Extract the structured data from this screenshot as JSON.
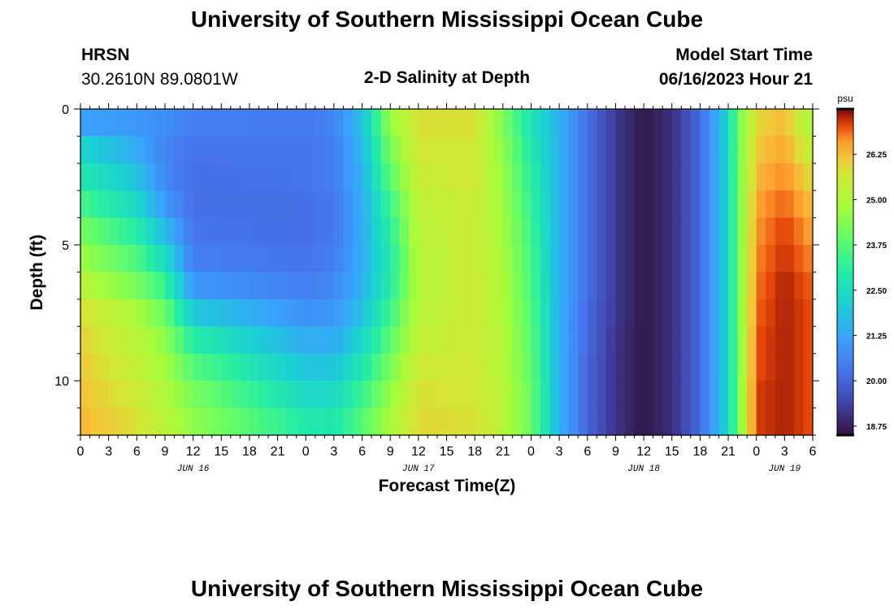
{
  "header": {
    "title": "University of Southern Mississippi Ocean Cube",
    "station": "HRSN",
    "coords": "30.2610N  89.0801W",
    "subtitle": "2-D Salinity at Depth",
    "model_label": "Model Start Time",
    "model_time": "06/16/2023 Hour 21"
  },
  "footer": {
    "title": "University of Southern Mississippi Ocean Cube"
  },
  "chart_data": {
    "type": "heatmap",
    "title": "2-D Salinity at Depth",
    "xlabel": "Forecast Time(Z)",
    "ylabel": "Depth (ft)",
    "x_hours_range": [
      0,
      78
    ],
    "y_range_ft": [
      0,
      12
    ],
    "y_ticks": [
      0,
      5,
      10
    ],
    "x_tick_hours": [
      0,
      3,
      6,
      9,
      12,
      15,
      18,
      21,
      24,
      27,
      30,
      33,
      36,
      39,
      42,
      45,
      48,
      51,
      54,
      57,
      60,
      63,
      66,
      69,
      72,
      75,
      78
    ],
    "x_tick_labels": [
      "0",
      "3",
      "6",
      "9",
      "12",
      "15",
      "18",
      "21",
      "0",
      "3",
      "6",
      "9",
      "12",
      "15",
      "18",
      "21",
      "0",
      "3",
      "6",
      "9",
      "12",
      "15",
      "18",
      "21",
      "0",
      "3",
      "6"
    ],
    "date_labels": [
      {
        "label": "JUN 16",
        "hour": 12
      },
      {
        "label": "JUN 17",
        "hour": 36
      },
      {
        "label": "JUN 18",
        "hour": 60
      },
      {
        "label": "JUN 19",
        "hour": 75
      }
    ],
    "colorbar": {
      "unit": "psu",
      "min": 18.5,
      "max": 27.5,
      "ticks": [
        18.75,
        20.0,
        21.25,
        22.5,
        23.75,
        25.0,
        26.25
      ],
      "tick_labels": [
        "18.75",
        "20.00",
        "21.25",
        "22.50",
        "23.75",
        "25.00",
        "26.25"
      ]
    },
    "depth_levels_ft": [
      0.5,
      1.5,
      2.5,
      3.5,
      4.5,
      5.5,
      6.5,
      7.5,
      8.5,
      9.5,
      10.5,
      11.5
    ],
    "profile_keyframes": [
      {
        "hour": 0,
        "values": [
          21.2,
          22.3,
          22.9,
          23.5,
          24.2,
          24.7,
          25.2,
          25.8,
          26.0,
          26.1,
          26.2,
          26.3
        ]
      },
      {
        "hour": 6,
        "values": [
          21.0,
          21.4,
          21.9,
          22.4,
          23.0,
          23.6,
          24.2,
          24.9,
          25.2,
          25.4,
          25.6,
          25.8
        ]
      },
      {
        "hour": 9,
        "values": [
          20.8,
          20.6,
          20.7,
          21.0,
          21.7,
          22.5,
          23.3,
          24.0,
          24.5,
          24.8,
          25.0,
          25.2
        ]
      },
      {
        "hour": 12,
        "values": [
          20.5,
          20.3,
          20.2,
          20.2,
          20.3,
          20.5,
          21.0,
          22.0,
          23.0,
          23.7,
          24.2,
          24.5
        ]
      },
      {
        "hour": 24,
        "values": [
          20.4,
          20.3,
          20.3,
          20.2,
          20.2,
          20.3,
          20.5,
          20.9,
          21.4,
          21.9,
          22.4,
          22.9
        ]
      },
      {
        "hour": 27,
        "values": [
          20.6,
          20.5,
          20.5,
          20.4,
          20.4,
          20.5,
          20.7,
          21.0,
          21.4,
          21.9,
          22.4,
          22.8
        ]
      },
      {
        "hour": 30,
        "values": [
          21.8,
          21.6,
          21.5,
          21.4,
          21.4,
          21.4,
          21.5,
          21.8,
          22.3,
          22.8,
          23.3,
          23.7
        ]
      },
      {
        "hour": 33,
        "values": [
          24.6,
          24.2,
          23.8,
          23.4,
          23.1,
          22.9,
          23.0,
          23.4,
          23.8,
          24.2,
          24.6,
          24.9
        ]
      },
      {
        "hour": 36,
        "values": [
          25.8,
          25.7,
          25.5,
          25.3,
          25.2,
          25.1,
          25.1,
          25.2,
          25.4,
          25.6,
          25.8,
          25.9
        ]
      },
      {
        "hour": 42,
        "values": [
          25.8,
          25.7,
          25.7,
          25.6,
          25.6,
          25.6,
          25.6,
          25.6,
          25.6,
          25.7,
          25.7,
          25.8
        ]
      },
      {
        "hour": 45,
        "values": [
          24.3,
          24.5,
          24.6,
          24.7,
          24.8,
          24.9,
          25.0,
          25.0,
          25.1,
          25.1,
          25.2,
          25.2
        ]
      },
      {
        "hour": 48,
        "values": [
          22.7,
          22.9,
          23.1,
          23.3,
          23.4,
          23.5,
          23.6,
          23.7,
          23.8,
          23.9,
          24.0,
          24.0
        ]
      },
      {
        "hour": 51,
        "values": [
          21.5,
          21.5,
          21.5,
          21.5,
          21.5,
          21.5,
          21.5,
          21.5,
          21.5,
          21.5,
          21.5,
          21.5
        ]
      },
      {
        "hour": 54,
        "values": [
          20.2,
          20.2,
          20.2,
          20.2,
          20.2,
          20.2,
          20.2,
          20.1,
          20.1,
          20.0,
          20.0,
          20.0
        ]
      },
      {
        "hour": 57,
        "values": [
          19.2,
          19.2,
          19.2,
          19.2,
          19.2,
          19.2,
          19.2,
          19.2,
          19.1,
          19.1,
          19.1,
          19.1
        ]
      },
      {
        "hour": 60,
        "values": [
          18.6,
          18.6,
          18.6,
          18.6,
          18.6,
          18.6,
          18.6,
          18.6,
          18.6,
          18.6,
          18.6,
          18.6
        ]
      },
      {
        "hour": 63,
        "values": [
          19.0,
          19.0,
          19.0,
          19.0,
          19.0,
          19.0,
          19.0,
          19.0,
          19.0,
          19.0,
          19.0,
          19.0
        ]
      },
      {
        "hour": 66,
        "values": [
          20.1,
          20.1,
          20.1,
          20.1,
          20.1,
          20.1,
          20.1,
          20.1,
          20.1,
          20.1,
          20.1,
          20.1
        ]
      },
      {
        "hour": 69,
        "values": [
          22.3,
          22.3,
          22.3,
          22.3,
          22.3,
          22.3,
          22.3,
          22.3,
          22.3,
          22.3,
          22.3,
          22.3
        ]
      },
      {
        "hour": 70,
        "values": [
          24.0,
          24.0,
          24.0,
          24.0,
          24.0,
          24.0,
          24.0,
          24.0,
          24.0,
          24.0,
          24.0,
          24.0
        ]
      },
      {
        "hour": 72,
        "values": [
          25.9,
          26.1,
          26.3,
          26.5,
          26.6,
          26.7,
          26.8,
          26.9,
          27.0,
          27.0,
          27.1,
          27.1
        ]
      },
      {
        "hour": 75,
        "values": [
          26.3,
          26.5,
          26.7,
          26.9,
          27.1,
          27.2,
          27.3,
          27.3,
          27.3,
          27.3,
          27.3,
          27.3
        ]
      },
      {
        "hour": 78,
        "values": [
          24.8,
          25.3,
          25.8,
          26.2,
          26.5,
          26.7,
          26.9,
          27.0,
          27.0,
          27.0,
          27.0,
          27.0
        ]
      }
    ]
  }
}
